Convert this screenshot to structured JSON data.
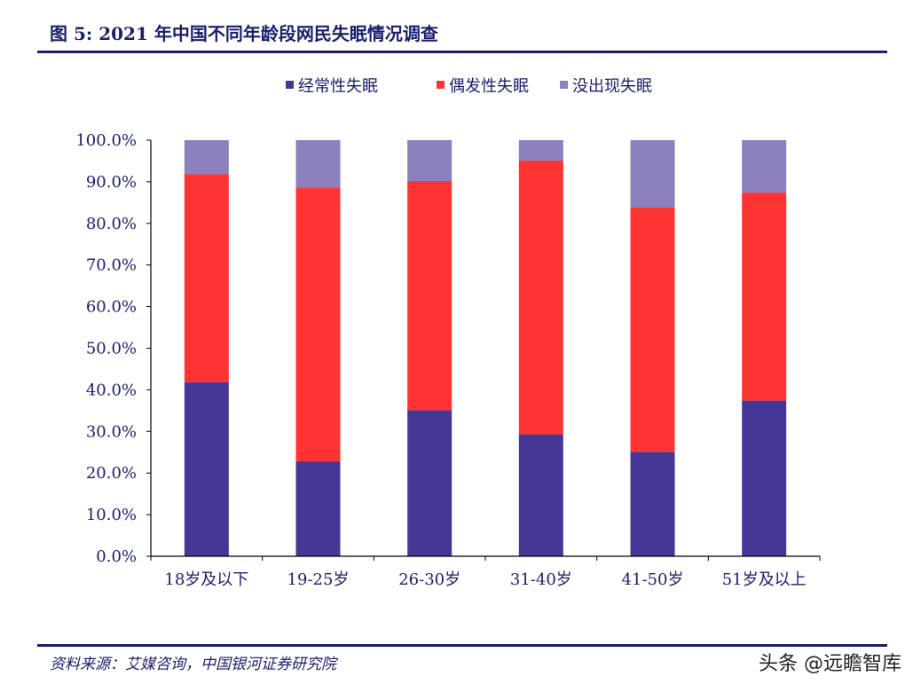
{
  "figure": {
    "title": "图 5:  2021 年中国不同年龄段网民失眠情况调查",
    "source": "资料来源：艾媒咨询，中国银河证券研究院",
    "watermark": "头条 @远瞻智库"
  },
  "chart_data": {
    "type": "bar",
    "stacked": true,
    "categories": [
      "18岁及以下",
      "19-25岁",
      "26-30岁",
      "31-40岁",
      "41-50岁",
      "51岁及以上"
    ],
    "series": [
      {
        "name": "经常性失眠",
        "color": "#453796",
        "values": [
          41.8,
          22.8,
          35.1,
          29.3,
          25.1,
          37.4
        ]
      },
      {
        "name": "偶发性失眠",
        "color": "#fe3434",
        "values": [
          50.0,
          65.8,
          55.1,
          65.8,
          58.7,
          50.0
        ]
      },
      {
        "name": "没出现失眠",
        "color": "#8c81be",
        "values": [
          8.2,
          11.4,
          9.8,
          4.9,
          16.2,
          12.6
        ]
      }
    ],
    "ylim": [
      0,
      100
    ],
    "yticks": [
      "0.0%",
      "10.0%",
      "20.0%",
      "30.0%",
      "40.0%",
      "50.0%",
      "60.0%",
      "70.0%",
      "80.0%",
      "90.0%",
      "100.0%"
    ],
    "legend_position": "top-center",
    "grid": false
  }
}
